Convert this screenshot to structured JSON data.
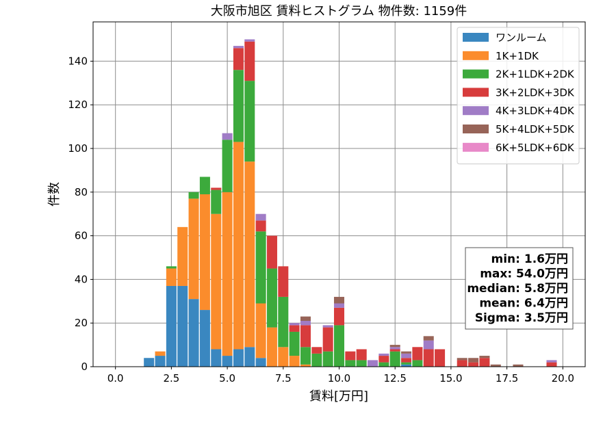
{
  "chart_data": {
    "type": "bar",
    "stacked": true,
    "title": "大阪市旭区 賃料ヒストグラム 物件数: 1159件",
    "xlabel": "賃料[万円]",
    "ylabel": "件数",
    "xlim": [
      -1.0,
      21.0
    ],
    "ylim": [
      0,
      158
    ],
    "xticks": [
      0.0,
      2.5,
      5.0,
      7.5,
      10.0,
      12.5,
      15.0,
      17.5,
      20.0
    ],
    "xtick_labels": [
      "0.0",
      "2.5",
      "5.0",
      "7.5",
      "10.0",
      "12.5",
      "15.0",
      "17.5",
      "20.0"
    ],
    "yticks": [
      0,
      20,
      40,
      60,
      80,
      100,
      120,
      140
    ],
    "ytick_labels": [
      "0",
      "20",
      "40",
      "60",
      "80",
      "100",
      "120",
      "140"
    ],
    "grid": true,
    "legend_position": "top-right",
    "bin_width": 0.5,
    "x": [
      1.5,
      2.0,
      2.5,
      3.0,
      3.5,
      4.0,
      4.5,
      5.0,
      5.5,
      6.0,
      6.5,
      7.0,
      7.5,
      8.0,
      8.5,
      9.0,
      9.5,
      10.0,
      10.5,
      11.0,
      11.5,
      12.0,
      12.5,
      13.0,
      13.5,
      14.0,
      14.5,
      15.5,
      16.0,
      16.5,
      17.0,
      18.0,
      19.5
    ],
    "series": [
      {
        "name": "ワンルーム",
        "color": "#3a87c0",
        "values": [
          4,
          5,
          37,
          37,
          31,
          26,
          8,
          5,
          8,
          9,
          4,
          0,
          0,
          0,
          0,
          0,
          0,
          0,
          0,
          0,
          0,
          0,
          0,
          1,
          0,
          0,
          0,
          0,
          0,
          0,
          0,
          0,
          0
        ]
      },
      {
        "name": "1K+1DK",
        "color": "#fb8c2c",
        "values": [
          0,
          2,
          8,
          27,
          46,
          53,
          62,
          75,
          95,
          85,
          25,
          18,
          9,
          5,
          1,
          0,
          0,
          0,
          0,
          0,
          0,
          0,
          0,
          0,
          0,
          0,
          0,
          0,
          0,
          0,
          0,
          0,
          0
        ]
      },
      {
        "name": "2K+1LDK+2DK",
        "color": "#3caa3c",
        "values": [
          0,
          0,
          1,
          0,
          3,
          8,
          11,
          24,
          33,
          37,
          33,
          27,
          23,
          11,
          8,
          6,
          7,
          19,
          3,
          3,
          0,
          2,
          7,
          1,
          3,
          0,
          0,
          0,
          0,
          0,
          0,
          0,
          0
        ]
      },
      {
        "name": "3K+2LDK+3DK",
        "color": "#d73c3c",
        "values": [
          0,
          0,
          0,
          0,
          0,
          0,
          1,
          0,
          10,
          18,
          5,
          15,
          14,
          3,
          10,
          3,
          11,
          8,
          4,
          5,
          0,
          3,
          1,
          2,
          6,
          8,
          8,
          3,
          2,
          4,
          0,
          0,
          2
        ]
      },
      {
        "name": "4K+3LDK+4DK",
        "color": "#a07cc6",
        "values": [
          0,
          0,
          0,
          0,
          0,
          0,
          0,
          3,
          1,
          1,
          3,
          0,
          0,
          1,
          2,
          0,
          1,
          2,
          0,
          0,
          3,
          1,
          1,
          2,
          0,
          4,
          0,
          0,
          0,
          0,
          0,
          0,
          1
        ]
      },
      {
        "name": "5K+4LDK+5DK",
        "color": "#976458",
        "values": [
          0,
          0,
          0,
          0,
          0,
          0,
          0,
          0,
          0,
          0,
          0,
          0,
          0,
          0,
          2,
          0,
          0,
          3,
          0,
          0,
          0,
          0,
          1,
          1,
          0,
          2,
          0,
          1,
          2,
          1,
          1,
          1,
          0
        ]
      },
      {
        "name": "6K+5LDK+6DK",
        "color": "#e889c8",
        "values": [
          0,
          0,
          0,
          0,
          0,
          0,
          0,
          0,
          0,
          0,
          0,
          0,
          0,
          0,
          0,
          0,
          0,
          0,
          0,
          0,
          0,
          0,
          0,
          0,
          0,
          0,
          0,
          0,
          0,
          0,
          0,
          0,
          0
        ]
      }
    ],
    "stats": [
      "min: 1.6万円",
      "max: 54.0万円",
      "median: 5.8万円",
      "mean: 6.4万円",
      "Sigma: 3.5万円"
    ]
  }
}
